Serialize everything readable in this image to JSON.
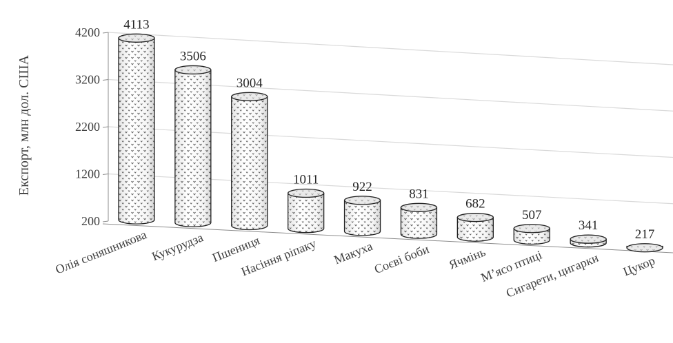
{
  "chart_data": {
    "type": "bar",
    "style": "3d-cylinder",
    "categories": [
      "Олія соняшникова",
      "Кукурудза",
      "Пшениця",
      "Насіння ріпаку",
      "Макуха",
      "Соєві боби",
      "Ячмінь",
      "М’ясо птиці",
      "Сигарети, цигарки",
      "Цукор"
    ],
    "values": [
      4113,
      3506,
      3004,
      1011,
      922,
      831,
      682,
      507,
      341,
      217
    ],
    "data_labels": [
      "4113",
      "3506",
      "3004",
      "1011",
      "922",
      "831",
      "682",
      "507",
      "341",
      "217"
    ],
    "ylabel": "Експорт, млн дол. США",
    "xlabel": "",
    "yticks": [
      "200",
      "1200",
      "2200",
      "3200",
      "4200"
    ],
    "ytick_values": [
      200,
      1200,
      2200,
      3200,
      4200
    ],
    "ylim": [
      200,
      4200
    ],
    "grid": true,
    "colors": {
      "fill": "#ffffff",
      "pattern": "#606060",
      "top": "#d9d9d9",
      "outline": "#222222",
      "grid": "#d9d9d9",
      "axis": "#8c8c8c"
    }
  }
}
